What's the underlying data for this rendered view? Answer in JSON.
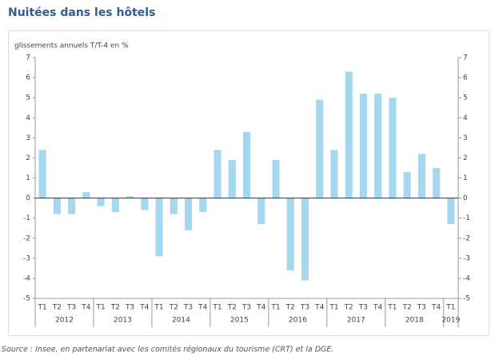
{
  "chart_data": {
    "type": "bar",
    "title": "Nuitées dans les hôtels",
    "subtitle": "glissements annuels T/T-4 en %",
    "source": "Source : Insee, en partenariat avec les comités régionaux du tourisme (CRT) et la DGE.",
    "categories": [
      "T1",
      "T2",
      "T3",
      "T4",
      "T1",
      "T2",
      "T3",
      "T4",
      "T1",
      "T2",
      "T3",
      "T4",
      "T1",
      "T2",
      "T3",
      "T4",
      "T1",
      "T2",
      "T3",
      "T4",
      "T1",
      "T2",
      "T3",
      "T4",
      "T1",
      "T2",
      "T3",
      "T4",
      "T1"
    ],
    "years": [
      "2012",
      "2013",
      "2014",
      "2015",
      "2016",
      "2017",
      "2018",
      "2019"
    ],
    "values": [
      2.4,
      -0.8,
      -0.8,
      0.3,
      -0.4,
      -0.7,
      0.1,
      -0.6,
      -2.9,
      -0.8,
      -1.6,
      -0.7,
      2.4,
      1.9,
      3.3,
      -1.3,
      1.9,
      -3.6,
      -4.1,
      4.9,
      2.4,
      6.3,
      5.2,
      5.2,
      5.0,
      1.3,
      2.2,
      1.5,
      -1.3
    ],
    "color": "#a5d8ee",
    "ylim": [
      -5,
      7
    ],
    "yticks": [
      7,
      6,
      5,
      4,
      3,
      2,
      1,
      0,
      -1,
      -2,
      -3,
      -4,
      -5
    ],
    "y2lim": [
      -5,
      7
    ],
    "y2ticks": [
      7,
      6,
      5,
      4,
      3,
      2,
      1,
      0,
      -1,
      -2,
      -3,
      -4,
      -5
    ]
  }
}
